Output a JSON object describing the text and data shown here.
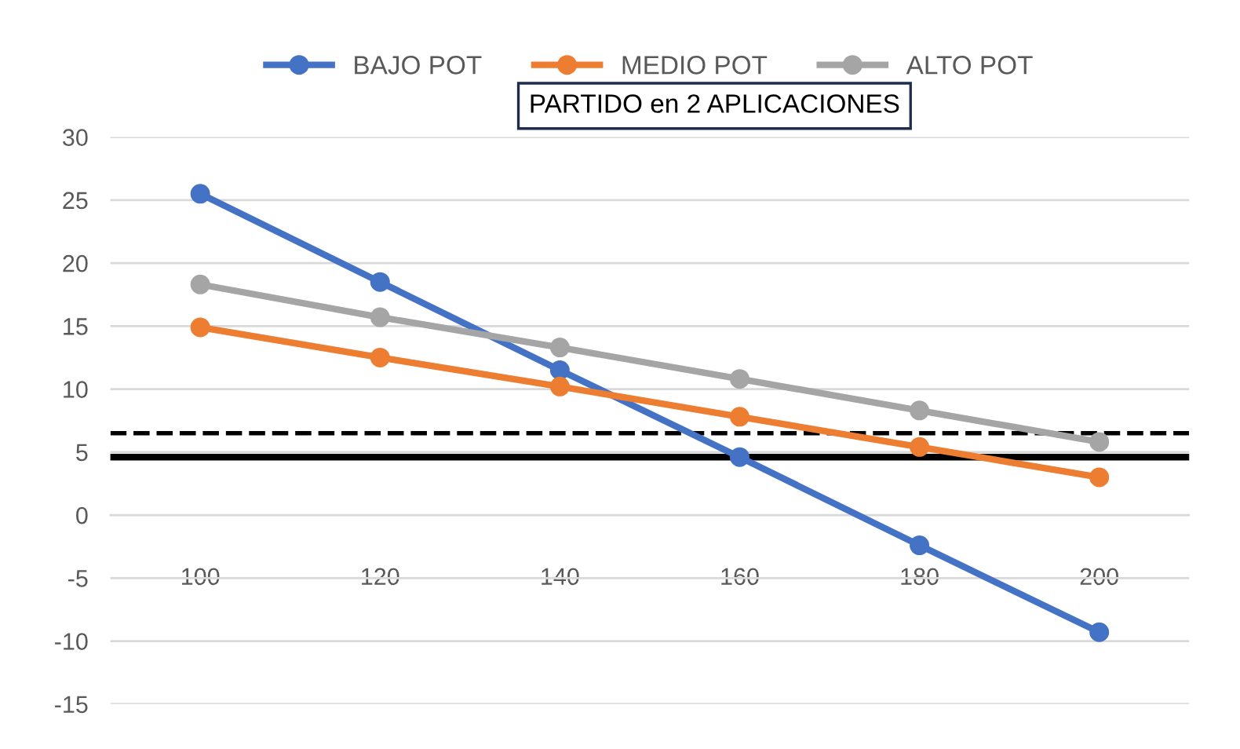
{
  "chart_data": {
    "type": "line",
    "categories": [
      "100",
      "120",
      "140",
      "160",
      "180",
      "200"
    ],
    "series": [
      {
        "name": "BAJO POT",
        "color": "#4472c4",
        "values": [
          25.5,
          18.5,
          11.5,
          4.6,
          -2.4,
          -9.3
        ]
      },
      {
        "name": "MEDIO POT",
        "color": "#ed7d31",
        "values": [
          14.9,
          12.5,
          10.2,
          7.8,
          5.4,
          3.0
        ]
      },
      {
        "name": "ALTO POT",
        "color": "#a5a5a5",
        "values": [
          18.3,
          15.7,
          13.3,
          10.8,
          8.3,
          5.8
        ]
      }
    ],
    "ylim": [
      -15,
      30
    ],
    "yticks": [
      -15,
      -10,
      -5,
      0,
      5,
      10,
      15,
      20,
      25,
      30
    ],
    "grid": "y",
    "legend": "top",
    "marker": "circle",
    "line_style": "solid",
    "annotations": [
      "PARTIDO en 2 APLICACIONES"
    ],
    "ref_lines": [
      {
        "axis": "y",
        "value": 6.5,
        "color": "#000000",
        "line_style": "dashed"
      },
      {
        "axis": "y",
        "value": 4.6,
        "color": "#000000",
        "line_style": "solid"
      }
    ]
  }
}
